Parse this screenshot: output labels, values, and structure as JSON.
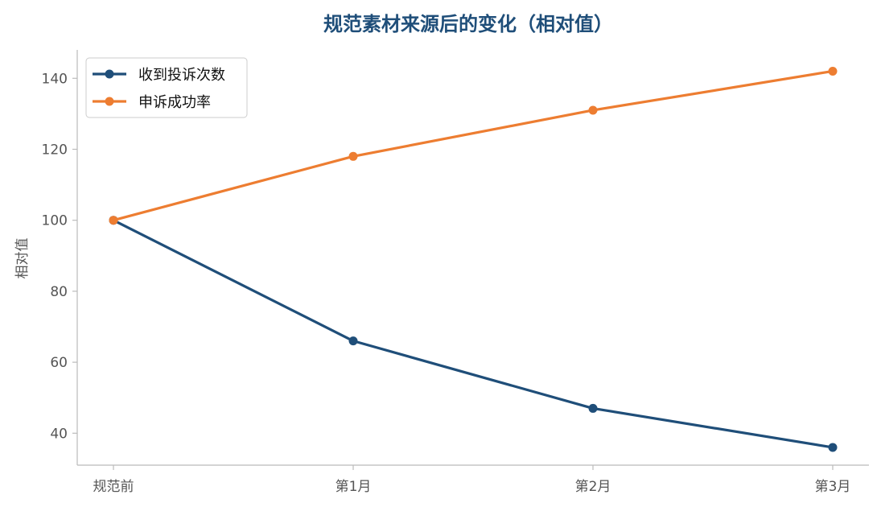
{
  "chart_data": {
    "type": "line",
    "title": "规范素材来源后的变化（相对值）",
    "xlabel": "",
    "ylabel": "相对值",
    "categories": [
      "规范前",
      "第1月",
      "第2月",
      "第3月"
    ],
    "series": [
      {
        "name": "收到投诉次数",
        "values": [
          100,
          66,
          47,
          36
        ],
        "color": "#1f4e79"
      },
      {
        "name": "申诉成功率",
        "values": [
          100,
          118,
          131,
          142
        ],
        "color": "#ed7d31"
      }
    ],
    "ylim": [
      31,
      148
    ],
    "yticks": [
      40,
      60,
      80,
      100,
      120,
      140
    ],
    "grid": false,
    "legend_position": "top-left",
    "title_color": "#1f4e79",
    "axis_color": "#bbbbbb",
    "tick_label_color": "#555555"
  }
}
